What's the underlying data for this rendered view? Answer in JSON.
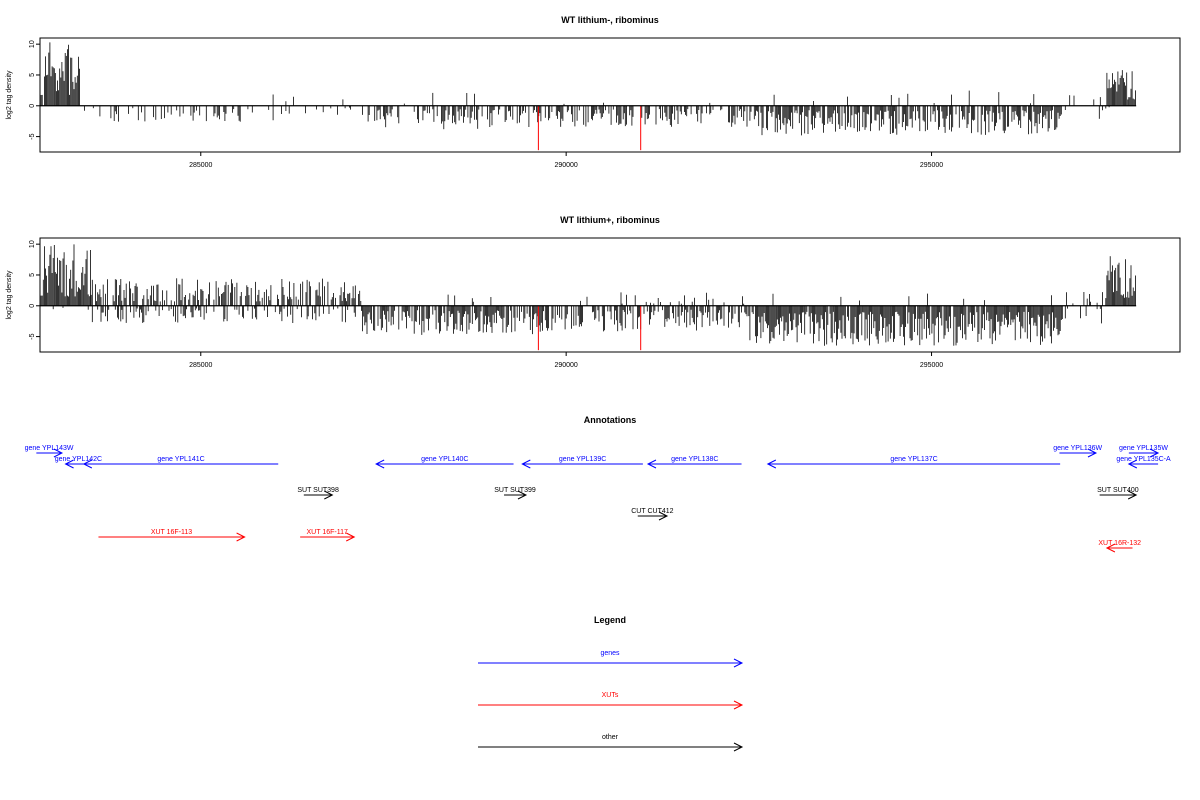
{
  "chart_data": [
    {
      "type": "bar",
      "title": "WT lithium-, ribominus",
      "ylabel": "log2 tag density",
      "xlabel": "",
      "xlim": [
        282800,
        298400
      ],
      "ylim": [
        -7.5,
        11
      ],
      "xticks": [
        "285000",
        "290000",
        "295000"
      ],
      "yticks": [
        "10",
        "5",
        "0",
        "-5"
      ],
      "grid": false,
      "seed": 7,
      "density_profile": [
        {
          "from": 282800,
          "to": 283350,
          "pos": 0.97,
          "neg": 0.05,
          "pos_max": 10.5,
          "neg_max": 1
        },
        {
          "from": 283350,
          "to": 286000,
          "pos": 0.02,
          "neg": 0.22,
          "pos_max": 3.5,
          "neg_max": 2.6
        },
        {
          "from": 286000,
          "to": 287200,
          "pos": 0.03,
          "neg": 0.08,
          "pos_max": 2.8,
          "neg_max": 1.5
        },
        {
          "from": 287200,
          "to": 289400,
          "pos": 0.04,
          "neg": 0.45,
          "pos_max": 2.2,
          "neg_max": 3.8
        },
        {
          "from": 289400,
          "to": 292500,
          "pos": 0.03,
          "neg": 0.55,
          "pos_max": 2,
          "neg_max": 3.6
        },
        {
          "from": 292500,
          "to": 296800,
          "pos": 0.03,
          "neg": 0.75,
          "pos_max": 2.6,
          "neg_max": 4.8
        },
        {
          "from": 296800,
          "to": 297400,
          "pos": 0.1,
          "neg": 0.15,
          "pos_max": 2,
          "neg_max": 2.5
        },
        {
          "from": 297400,
          "to": 297800,
          "pos": 0.95,
          "neg": 0.02,
          "pos_max": 5.8,
          "neg_max": 0.5
        }
      ],
      "red_markers": [
        {
          "x": 289620,
          "y": -7.2
        },
        {
          "x": 291020,
          "y": -7.2
        }
      ]
    },
    {
      "type": "bar",
      "title": "WT lithium+, ribominus",
      "ylabel": "log2 tag density",
      "xlabel": "",
      "xlim": [
        282800,
        298400
      ],
      "ylim": [
        -7.5,
        11
      ],
      "xticks": [
        "285000",
        "290000",
        "295000"
      ],
      "yticks": [
        "10",
        "5",
        "0",
        "-5"
      ],
      "grid": false,
      "seed": 19,
      "density_profile": [
        {
          "from": 282800,
          "to": 283500,
          "pos": 0.98,
          "neg": 0.1,
          "pos_max": 10,
          "neg_max": 1.5
        },
        {
          "from": 283500,
          "to": 287200,
          "pos": 0.55,
          "neg": 0.35,
          "pos_max": 4.5,
          "neg_max": 2.8
        },
        {
          "from": 287200,
          "to": 289700,
          "pos": 0.08,
          "neg": 0.8,
          "pos_max": 2,
          "neg_max": 4.8
        },
        {
          "from": 289700,
          "to": 292500,
          "pos": 0.1,
          "neg": 0.6,
          "pos_max": 2.2,
          "neg_max": 4.2
        },
        {
          "from": 292500,
          "to": 296800,
          "pos": 0.04,
          "neg": 0.95,
          "pos_max": 2.5,
          "neg_max": 6.5
        },
        {
          "from": 296800,
          "to": 297400,
          "pos": 0.2,
          "neg": 0.2,
          "pos_max": 2.5,
          "neg_max": 3
        },
        {
          "from": 297400,
          "to": 297800,
          "pos": 0.98,
          "neg": 0.05,
          "pos_max": 8.5,
          "neg_max": 1
        }
      ],
      "red_markers": [
        {
          "x": 289620,
          "y": -7.2
        },
        {
          "x": 291020,
          "y": -7.2
        }
      ]
    }
  ],
  "annotations": {
    "title": "Annotations",
    "xlim": [
      282800,
      298400
    ],
    "features": [
      {
        "label": "gene YPL143W",
        "kind": "gene",
        "start": 282750,
        "end": 283100,
        "dir": "right",
        "row": 0
      },
      {
        "label": "gene YPL142C",
        "kind": "gene",
        "start": 283150,
        "end": 283500,
        "dir": "left",
        "row": 1
      },
      {
        "label": "gene YPL141C",
        "kind": "gene",
        "start": 283400,
        "end": 286060,
        "dir": "left",
        "row": 1
      },
      {
        "label": "gene YPL140C",
        "kind": "gene",
        "start": 287400,
        "end": 289280,
        "dir": "left",
        "row": 1
      },
      {
        "label": "gene YPL139C",
        "kind": "gene",
        "start": 289400,
        "end": 291050,
        "dir": "left",
        "row": 1
      },
      {
        "label": "gene YPL138C",
        "kind": "gene",
        "start": 291120,
        "end": 292400,
        "dir": "left",
        "row": 1
      },
      {
        "label": "gene YPL137C",
        "kind": "gene",
        "start": 292760,
        "end": 296760,
        "dir": "left",
        "row": 1
      },
      {
        "label": "gene YPL136W",
        "kind": "gene",
        "start": 296750,
        "end": 297250,
        "dir": "right",
        "row": 0
      },
      {
        "label": "gene YPL135W",
        "kind": "gene",
        "start": 297700,
        "end": 298100,
        "dir": "right",
        "row": 0
      },
      {
        "label": "gene YPL135C-A",
        "kind": "gene",
        "start": 297700,
        "end": 298100,
        "dir": "left",
        "row": 1
      },
      {
        "label": "SUT SUT398",
        "kind": "other",
        "start": 286410,
        "end": 286800,
        "dir": "right",
        "row": 2
      },
      {
        "label": "SUT SUT399",
        "kind": "other",
        "start": 289150,
        "end": 289450,
        "dir": "right",
        "row": 2
      },
      {
        "label": "SUT SUT400",
        "kind": "other",
        "start": 297300,
        "end": 297800,
        "dir": "right",
        "row": 2
      },
      {
        "label": "CUT CUT412",
        "kind": "other",
        "start": 290980,
        "end": 291380,
        "dir": "right",
        "row": 3
      },
      {
        "label": "XUT 16F-113",
        "kind": "xut",
        "start": 283600,
        "end": 285600,
        "dir": "right",
        "row": 4
      },
      {
        "label": "XUT 16F-117",
        "kind": "xut",
        "start": 286360,
        "end": 287100,
        "dir": "right",
        "row": 4
      },
      {
        "label": "XUT 16R-132",
        "kind": "xut",
        "start": 297400,
        "end": 297750,
        "dir": "left",
        "row": 5
      }
    ]
  },
  "legend": {
    "title": "Legend",
    "items": [
      {
        "label": "genes",
        "kind": "gene"
      },
      {
        "label": "XUTs",
        "kind": "xut"
      },
      {
        "label": "other",
        "kind": "other"
      }
    ]
  },
  "colors": {
    "gene": "#0000ff",
    "xut": "#ff0000",
    "other": "#000000",
    "marker": "#ff0000",
    "bar": "#000000"
  }
}
